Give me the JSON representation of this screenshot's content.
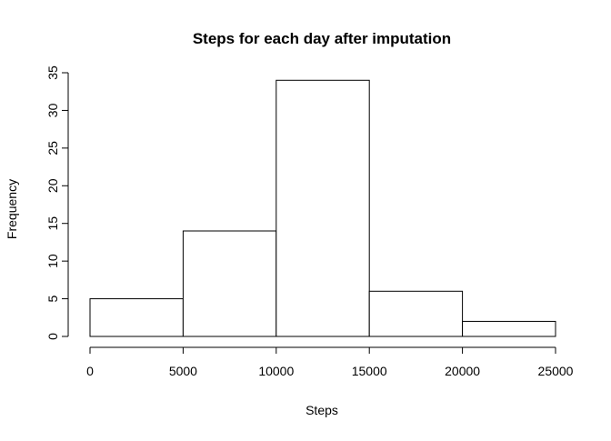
{
  "chart_data": {
    "type": "bar",
    "title": "Steps for each day after imputation",
    "xlabel": "Steps",
    "ylabel": "Frequency",
    "bins": [
      {
        "from": 0,
        "to": 5000,
        "count": 5
      },
      {
        "from": 5000,
        "to": 10000,
        "count": 14
      },
      {
        "from": 10000,
        "to": 15000,
        "count": 34
      },
      {
        "from": 15000,
        "to": 20000,
        "count": 6
      },
      {
        "from": 20000,
        "to": 25000,
        "count": 2
      }
    ],
    "xlim": [
      0,
      25000
    ],
    "ylim": [
      0,
      35
    ],
    "x_ticks": [
      0,
      5000,
      10000,
      15000,
      20000,
      25000
    ],
    "x_tick_labels": [
      "0",
      "5000",
      "10000",
      "15000",
      "20000",
      "25000"
    ],
    "y_ticks": [
      0,
      5,
      10,
      15,
      20,
      25,
      30,
      35
    ],
    "y_tick_labels": [
      "0",
      "5",
      "10",
      "15",
      "20",
      "25",
      "30",
      "35"
    ],
    "grid": false,
    "legend": "none",
    "colors": {
      "bar_fill": "#ffffff",
      "bar_stroke": "#000000"
    }
  }
}
